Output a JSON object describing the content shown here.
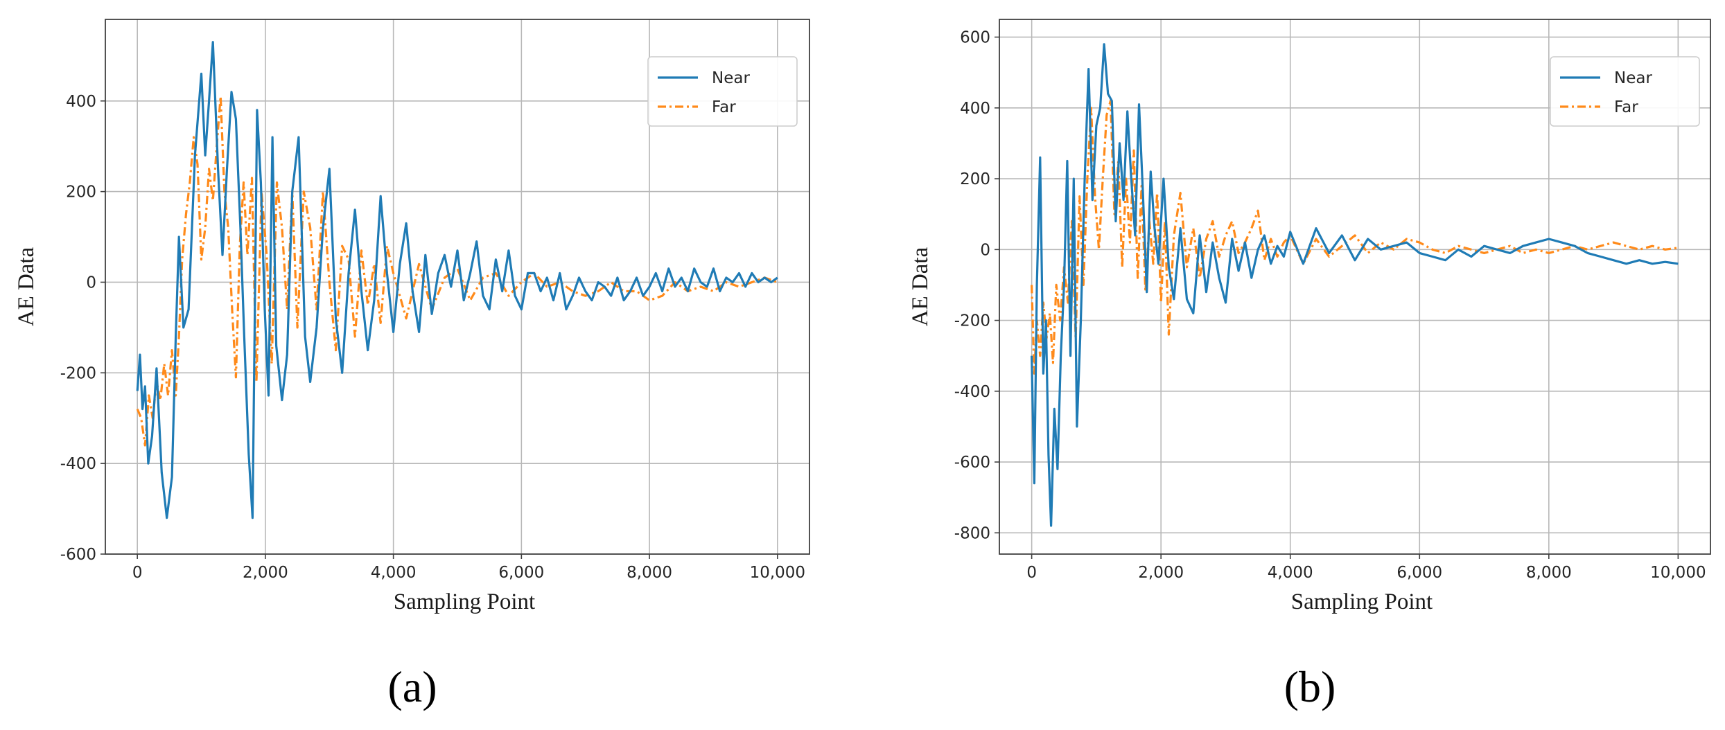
{
  "colors": {
    "near": "#1f7bb5",
    "far": "#ff8a1a",
    "grid": "#b8b8b8",
    "axis": "#404040"
  },
  "chart_data": [
    {
      "panel": "(a)",
      "type": "line",
      "xlabel": "Sampling Point",
      "ylabel": "AE Data",
      "xlim": [
        -500,
        10500
      ],
      "ylim": [
        -600,
        580
      ],
      "xticks": [
        0,
        2000,
        4000,
        6000,
        8000,
        10000
      ],
      "xtick_labels": [
        "0",
        "2,000",
        "4,000",
        "6,000",
        "8,000",
        "10,000"
      ],
      "yticks": [
        -600,
        -400,
        -200,
        0,
        200,
        400
      ],
      "ytick_labels": [
        "-600",
        "-400",
        "-200",
        "0",
        "200",
        "400"
      ],
      "grid": true,
      "legend": "top-right",
      "series": [
        {
          "name": "Near",
          "style": "solid",
          "x": [
            0,
            40,
            80,
            120,
            170,
            230,
            300,
            380,
            460,
            540,
            600,
            650,
            720,
            800,
            900,
            1000,
            1060,
            1120,
            1180,
            1260,
            1330,
            1400,
            1470,
            1540,
            1610,
            1670,
            1740,
            1800,
            1870,
            1930,
            1990,
            2050,
            2110,
            2170,
            2260,
            2340,
            2420,
            2520,
            2620,
            2700,
            2800,
            2900,
            3000,
            3100,
            3200,
            3300,
            3400,
            3500,
            3600,
            3700,
            3800,
            3900,
            4000,
            4100,
            4200,
            4300,
            4400,
            4500,
            4600,
            4700,
            4800,
            4900,
            5000,
            5100,
            5200,
            5300,
            5400,
            5500,
            5600,
            5700,
            5800,
            5900,
            6000,
            6100,
            6200,
            6300,
            6400,
            6500,
            6600,
            6700,
            6800,
            6900,
            7000,
            7100,
            7200,
            7300,
            7400,
            7500,
            7600,
            7700,
            7800,
            7900,
            8000,
            8100,
            8200,
            8300,
            8400,
            8500,
            8600,
            8700,
            8800,
            8900,
            9000,
            9100,
            9200,
            9300,
            9400,
            9500,
            9600,
            9700,
            9800,
            9900,
            10000
          ],
          "y": [
            -240,
            -160,
            -280,
            -230,
            -400,
            -340,
            -190,
            -420,
            -520,
            -430,
            -120,
            100,
            -100,
            -60,
            280,
            460,
            280,
            400,
            530,
            250,
            60,
            250,
            420,
            360,
            120,
            -120,
            -380,
            -520,
            380,
            220,
            -60,
            -250,
            320,
            -140,
            -260,
            -160,
            200,
            320,
            -120,
            -220,
            -100,
            120,
            250,
            -80,
            -200,
            20,
            160,
            -20,
            -150,
            -40,
            190,
            20,
            -110,
            40,
            130,
            -20,
            -110,
            60,
            -70,
            20,
            60,
            -10,
            70,
            -40,
            20,
            90,
            -30,
            -60,
            50,
            -20,
            70,
            -30,
            -60,
            20,
            20,
            -20,
            10,
            -40,
            20,
            -60,
            -30,
            10,
            -20,
            -40,
            0,
            -10,
            -30,
            10,
            -40,
            -20,
            10,
            -30,
            -10,
            20,
            -20,
            30,
            -10,
            10,
            -20,
            30,
            0,
            -10,
            30,
            -20,
            10,
            0,
            20,
            -10,
            20,
            0,
            10,
            0,
            10
          ]
        },
        {
          "name": "Far",
          "style": "dashdot",
          "x": [
            0,
            60,
            120,
            180,
            240,
            300,
            360,
            420,
            480,
            540,
            600,
            650,
            700,
            760,
            820,
            880,
            940,
            1000,
            1060,
            1120,
            1180,
            1240,
            1300,
            1360,
            1420,
            1480,
            1540,
            1600,
            1660,
            1720,
            1790,
            1860,
            1940,
            2020,
            2100,
            2180,
            2260,
            2340,
            2420,
            2500,
            2600,
            2700,
            2800,
            2900,
            3000,
            3100,
            3200,
            3300,
            3400,
            3500,
            3600,
            3700,
            3800,
            3900,
            4000,
            4200,
            4400,
            4600,
            4800,
            5000,
            5200,
            5400,
            5600,
            5800,
            6000,
            6200,
            6400,
            6600,
            6800,
            7000,
            7200,
            7400,
            7600,
            7800,
            8000,
            8200,
            8400,
            8600,
            8800,
            9000,
            9200,
            9400,
            9600,
            9800,
            10000
          ],
          "y": [
            -280,
            -300,
            -360,
            -250,
            -300,
            -220,
            -260,
            -180,
            -250,
            -150,
            -250,
            -120,
            50,
            150,
            220,
            320,
            260,
            50,
            120,
            250,
            180,
            300,
            410,
            200,
            120,
            -60,
            -210,
            80,
            220,
            60,
            230,
            -220,
            200,
            60,
            -180,
            220,
            120,
            -60,
            200,
            -100,
            200,
            120,
            -60,
            200,
            0,
            -150,
            80,
            50,
            -120,
            70,
            -50,
            40,
            -90,
            80,
            20,
            -80,
            40,
            -60,
            10,
            30,
            -40,
            10,
            20,
            -30,
            0,
            20,
            -10,
            0,
            -20,
            -30,
            -20,
            0,
            -20,
            -20,
            -40,
            -30,
            0,
            -20,
            -10,
            -20,
            0,
            -10,
            0,
            10,
            0
          ]
        }
      ]
    },
    {
      "panel": "(b)",
      "type": "line",
      "xlabel": "Sampling Point",
      "ylabel": "AE Data",
      "xlim": [
        -500,
        10500
      ],
      "ylim": [
        -860,
        650
      ],
      "xticks": [
        0,
        2000,
        4000,
        6000,
        8000,
        10000
      ],
      "xtick_labels": [
        "0",
        "2,000",
        "4,000",
        "6,000",
        "8,000",
        "10,000"
      ],
      "yticks": [
        -800,
        -600,
        -400,
        -200,
        0,
        200,
        400,
        600
      ],
      "ytick_labels": [
        "-800",
        "-600",
        "-400",
        "-200",
        "0",
        "200",
        "400",
        "600"
      ],
      "grid": true,
      "legend": "top-right",
      "series": [
        {
          "name": "Near",
          "style": "solid",
          "x": [
            0,
            40,
            80,
            130,
            180,
            220,
            260,
            300,
            350,
            400,
            450,
            500,
            550,
            600,
            650,
            700,
            760,
            820,
            880,
            940,
            1000,
            1060,
            1120,
            1180,
            1240,
            1300,
            1360,
            1420,
            1480,
            1540,
            1600,
            1660,
            1720,
            1780,
            1840,
            1900,
            1960,
            2040,
            2120,
            2200,
            2300,
            2400,
            2500,
            2600,
            2700,
            2800,
            2900,
            3000,
            3100,
            3200,
            3300,
            3400,
            3500,
            3600,
            3700,
            3800,
            3900,
            4000,
            4200,
            4400,
            4600,
            4800,
            5000,
            5200,
            5400,
            5600,
            5800,
            6000,
            6200,
            6400,
            6600,
            6800,
            7000,
            7200,
            7400,
            7600,
            7800,
            8000,
            8200,
            8400,
            8600,
            8800,
            9000,
            9200,
            9400,
            9600,
            9800,
            10000
          ],
          "y": [
            -300,
            -660,
            -100,
            260,
            -350,
            -200,
            -580,
            -780,
            -450,
            -620,
            -300,
            -100,
            250,
            -300,
            200,
            -500,
            -200,
            200,
            510,
            140,
            350,
            400,
            580,
            440,
            420,
            80,
            300,
            140,
            390,
            200,
            40,
            410,
            160,
            -120,
            220,
            60,
            -40,
            200,
            -50,
            -140,
            60,
            -140,
            -180,
            40,
            -120,
            20,
            -80,
            -150,
            30,
            -60,
            20,
            -80,
            0,
            40,
            -40,
            10,
            -20,
            50,
            -40,
            60,
            -10,
            40,
            -30,
            30,
            0,
            10,
            20,
            -10,
            -20,
            -30,
            0,
            -20,
            10,
            0,
            -10,
            10,
            20,
            30,
            20,
            10,
            -10,
            -20,
            -30,
            -40,
            -30,
            -40,
            -35,
            -40
          ]
        },
        {
          "name": "Far",
          "style": "dashdot",
          "x": [
            0,
            40,
            80,
            130,
            180,
            230,
            280,
            330,
            380,
            440,
            500,
            560,
            620,
            680,
            740,
            800,
            860,
            920,
            980,
            1040,
            1100,
            1160,
            1220,
            1280,
            1340,
            1400,
            1460,
            1520,
            1580,
            1640,
            1700,
            1760,
            1820,
            1880,
            1940,
            2000,
            2060,
            2120,
            2200,
            2300,
            2400,
            2500,
            2600,
            2700,
            2800,
            2900,
            3000,
            3100,
            3200,
            3300,
            3400,
            3500,
            3600,
            3700,
            3800,
            3900,
            4000,
            4200,
            4400,
            4600,
            4800,
            5000,
            5200,
            5400,
            5600,
            5800,
            6000,
            6200,
            6400,
            6600,
            6800,
            7000,
            7200,
            7400,
            7600,
            7800,
            8000,
            8200,
            8400,
            8600,
            8800,
            9000,
            9200,
            9400,
            9600,
            9800,
            10000
          ],
          "y": [
            -100,
            -350,
            -200,
            -300,
            -150,
            -250,
            -180,
            -320,
            -100,
            -200,
            -50,
            -150,
            80,
            -250,
            150,
            -100,
            200,
            400,
            150,
            0,
            200,
            380,
            420,
            100,
            250,
            -50,
            200,
            20,
            280,
            -80,
            180,
            -120,
            80,
            -40,
            160,
            -150,
            80,
            -240,
            40,
            160,
            -50,
            60,
            -80,
            30,
            80,
            -20,
            40,
            80,
            -10,
            20,
            60,
            110,
            -30,
            30,
            -20,
            20,
            40,
            -40,
            30,
            -20,
            10,
            40,
            -10,
            20,
            0,
            30,
            20,
            0,
            -10,
            10,
            0,
            -10,
            0,
            10,
            -10,
            0,
            -10,
            0,
            10,
            0,
            10,
            20,
            10,
            0,
            10,
            0,
            5
          ]
        }
      ]
    }
  ]
}
